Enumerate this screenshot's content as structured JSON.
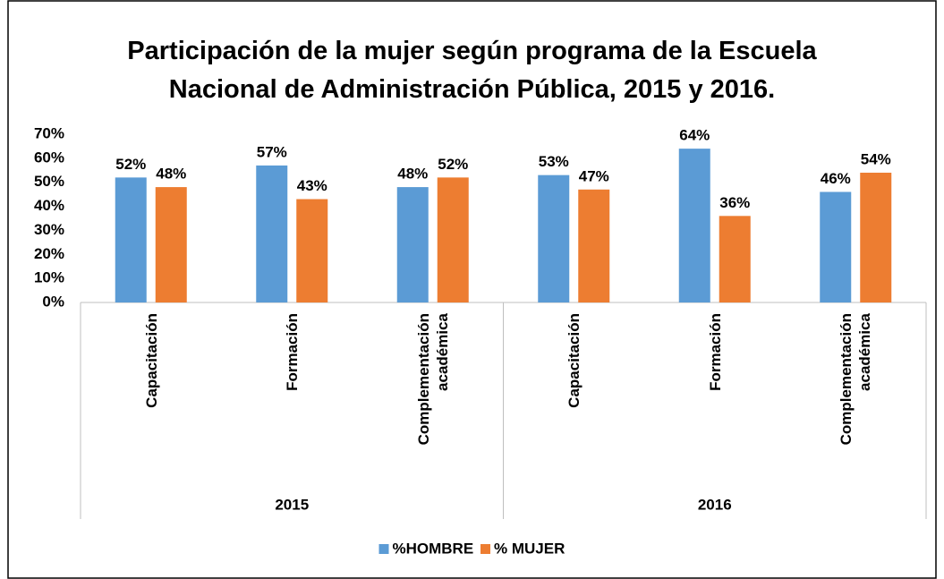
{
  "chart_data": {
    "type": "bar",
    "title": "Participación de la mujer según programa de la Escuela Nacional de Administración Pública, 2015 y 2016.",
    "categories": [
      "Capacitación",
      "Formación",
      "Complementación académica",
      "Capacitación",
      "Formación",
      "Complementación académica"
    ],
    "groups": [
      "2015",
      "2016"
    ],
    "series": [
      {
        "name": "%HOMBRE",
        "color": "#5b9bd5",
        "values": [
          52,
          57,
          48,
          53,
          64,
          46
        ],
        "value_labels": [
          "52%",
          "57%",
          "48%",
          "53%",
          "64%",
          "46%"
        ]
      },
      {
        "name": "% MUJER",
        "color": "#ed7d31",
        "values": [
          48,
          43,
          52,
          47,
          36,
          54
        ],
        "value_labels": [
          "48%",
          "43%",
          "52%",
          "47%",
          "36%",
          "54%"
        ]
      }
    ],
    "ylim": [
      0,
      70
    ],
    "yticks": [
      {
        "value": 0,
        "label": "0%"
      },
      {
        "value": 10,
        "label": "10%"
      },
      {
        "value": 20,
        "label": "20%"
      },
      {
        "value": 30,
        "label": "30%"
      },
      {
        "value": 40,
        "label": "40%"
      },
      {
        "value": 50,
        "label": "50%"
      },
      {
        "value": 60,
        "label": "60%"
      },
      {
        "value": 70,
        "label": "70%"
      }
    ],
    "grid": false,
    "legend": "bottom"
  }
}
